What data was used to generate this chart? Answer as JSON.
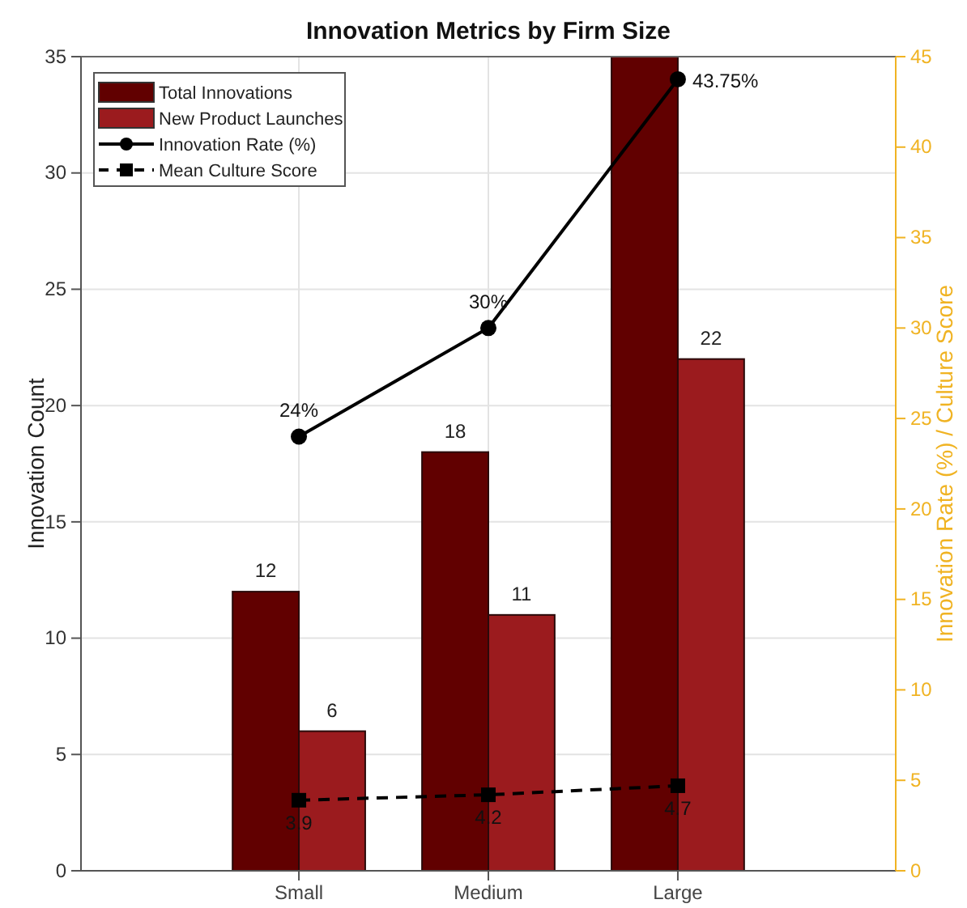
{
  "chart_data": {
    "type": "bar",
    "title": "Innovation Metrics by Firm Size",
    "categories": [
      "Small",
      "Medium",
      "Large"
    ],
    "series": [
      {
        "name": "Total Innovations",
        "color": "#610000",
        "values": [
          12,
          18,
          35
        ],
        "value_labels": [
          "12",
          "18",
          null
        ]
      },
      {
        "name": "New Product Launches",
        "color": "#9b1b1e",
        "values": [
          6,
          11,
          22
        ],
        "value_labels": [
          "6",
          "11",
          "22"
        ]
      },
      {
        "name": "Innovation Rate (%)",
        "type": "line",
        "axis": "y2",
        "color": "#000000",
        "marker": "circle",
        "line_style": "solid",
        "values": [
          24,
          30,
          43.75
        ],
        "value_labels": [
          "24%",
          "30%",
          "43.75%"
        ]
      },
      {
        "name": "Mean Culture Score",
        "type": "line",
        "axis": "y2",
        "color": "#000000",
        "marker": "square",
        "line_style": "dashed",
        "values": [
          3.9,
          4.2,
          4.7
        ],
        "value_labels": [
          "3.9",
          "4.2",
          "4.7"
        ]
      }
    ],
    "ylabel": "Innovation Count",
    "y2label": "Innovation Rate (%) / Culture Score",
    "ylim": [
      0,
      35
    ],
    "yticks": [
      0,
      5,
      10,
      15,
      20,
      25,
      30,
      35
    ],
    "y2lim": [
      0,
      45
    ],
    "y2ticks": [
      0,
      5,
      10,
      15,
      20,
      25,
      30,
      35,
      40,
      45
    ],
    "grid": true,
    "legend": "top left"
  }
}
